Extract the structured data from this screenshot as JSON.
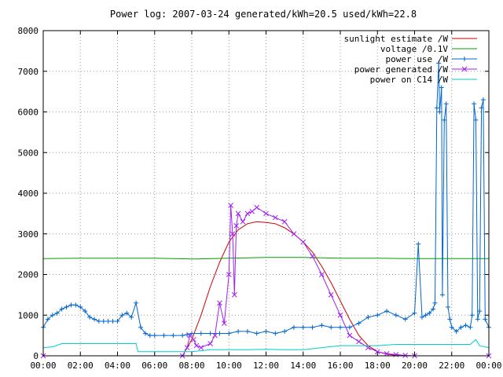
{
  "chart_data": {
    "type": "line",
    "title": "Power log: 2007-03-24 generated/kWh=20.5 used/kWh=22.8",
    "xlabel": "",
    "ylabel": "",
    "x_unit": "hours",
    "xlim": [
      0,
      24
    ],
    "ylim": [
      0,
      8000
    ],
    "grid": true,
    "legend_position": "top-right",
    "x_ticks": [
      "00:00",
      "02:00",
      "04:00",
      "06:00",
      "08:00",
      "10:00",
      "12:00",
      "14:00",
      "16:00",
      "18:00",
      "20:00",
      "22:00",
      "00:00"
    ],
    "y_ticks": [
      "0",
      "1000",
      "2000",
      "3000",
      "4000",
      "5000",
      "6000",
      "7000",
      "8000"
    ],
    "series": [
      {
        "name": "sunlight estimate /W",
        "color": "#cc0000",
        "style": "line",
        "points": [
          [
            0,
            0
          ],
          [
            7.5,
            0
          ],
          [
            8,
            400
          ],
          [
            8.5,
            1000
          ],
          [
            9,
            1700
          ],
          [
            9.5,
            2300
          ],
          [
            10,
            2800
          ],
          [
            10.5,
            3100
          ],
          [
            11,
            3250
          ],
          [
            11.5,
            3300
          ],
          [
            12,
            3280
          ],
          [
            12.5,
            3250
          ],
          [
            13,
            3150
          ],
          [
            13.5,
            3000
          ],
          [
            14,
            2800
          ],
          [
            14.5,
            2550
          ],
          [
            15,
            2200
          ],
          [
            15.5,
            1800
          ],
          [
            16,
            1350
          ],
          [
            16.5,
            900
          ],
          [
            17,
            500
          ],
          [
            17.5,
            250
          ],
          [
            18,
            100
          ],
          [
            18.5,
            40
          ],
          [
            19,
            10
          ],
          [
            19.5,
            0
          ],
          [
            24,
            0
          ]
        ]
      },
      {
        "name": "voltage /0.1V",
        "color": "#00a000",
        "style": "line",
        "points": [
          [
            0,
            2390
          ],
          [
            2,
            2400
          ],
          [
            4,
            2400
          ],
          [
            6,
            2400
          ],
          [
            8,
            2380
          ],
          [
            10,
            2400
          ],
          [
            12,
            2420
          ],
          [
            14,
            2420
          ],
          [
            16,
            2400
          ],
          [
            18,
            2400
          ],
          [
            20,
            2390
          ],
          [
            22,
            2390
          ],
          [
            24,
            2390
          ]
        ]
      },
      {
        "name": "power use /W",
        "color": "#0066cc",
        "style": "linepoints",
        "points": [
          [
            0,
            700
          ],
          [
            0.25,
            900
          ],
          [
            0.5,
            1000
          ],
          [
            0.75,
            1050
          ],
          [
            1,
            1150
          ],
          [
            1.25,
            1200
          ],
          [
            1.5,
            1250
          ],
          [
            1.75,
            1250
          ],
          [
            2,
            1200
          ],
          [
            2.25,
            1100
          ],
          [
            2.5,
            950
          ],
          [
            2.75,
            900
          ],
          [
            3,
            850
          ],
          [
            3.25,
            850
          ],
          [
            3.5,
            850
          ],
          [
            3.75,
            850
          ],
          [
            4,
            850
          ],
          [
            4.25,
            1000
          ],
          [
            4.5,
            1050
          ],
          [
            4.75,
            950
          ],
          [
            5,
            1300
          ],
          [
            5.25,
            700
          ],
          [
            5.5,
            550
          ],
          [
            5.75,
            500
          ],
          [
            6,
            500
          ],
          [
            6.5,
            500
          ],
          [
            7,
            500
          ],
          [
            7.5,
            500
          ],
          [
            7.75,
            520
          ],
          [
            8,
            550
          ],
          [
            8.5,
            550
          ],
          [
            9,
            550
          ],
          [
            9.5,
            550
          ],
          [
            10,
            550
          ],
          [
            10.5,
            600
          ],
          [
            11,
            600
          ],
          [
            11.5,
            550
          ],
          [
            12,
            600
          ],
          [
            12.5,
            550
          ],
          [
            13,
            600
          ],
          [
            13.5,
            700
          ],
          [
            14,
            700
          ],
          [
            14.5,
            700
          ],
          [
            15,
            750
          ],
          [
            15.5,
            700
          ],
          [
            16,
            700
          ],
          [
            16.5,
            700
          ],
          [
            17,
            800
          ],
          [
            17.5,
            950
          ],
          [
            18,
            1000
          ],
          [
            18.5,
            1100
          ],
          [
            19,
            1000
          ],
          [
            19.5,
            900
          ],
          [
            20,
            1050
          ],
          [
            20.2,
            2750
          ],
          [
            20.4,
            950
          ],
          [
            20.6,
            1000
          ],
          [
            20.8,
            1050
          ],
          [
            21,
            1150
          ],
          [
            21.1,
            1300
          ],
          [
            21.2,
            6100
          ],
          [
            21.3,
            7200
          ],
          [
            21.35,
            6000
          ],
          [
            21.45,
            6600
          ],
          [
            21.5,
            1500
          ],
          [
            21.6,
            5800
          ],
          [
            21.7,
            6200
          ],
          [
            21.8,
            1200
          ],
          [
            21.9,
            900
          ],
          [
            22,
            700
          ],
          [
            22.25,
            600
          ],
          [
            22.5,
            700
          ],
          [
            22.75,
            750
          ],
          [
            23,
            700
          ],
          [
            23.1,
            1000
          ],
          [
            23.2,
            6200
          ],
          [
            23.3,
            5800
          ],
          [
            23.4,
            900
          ],
          [
            23.5,
            1100
          ],
          [
            23.6,
            6100
          ],
          [
            23.7,
            6300
          ],
          [
            23.8,
            900
          ],
          [
            24,
            700
          ]
        ]
      },
      {
        "name": "power generated /W",
        "color": "#a020f0",
        "style": "linepoints",
        "points": [
          [
            0,
            0
          ],
          [
            7.5,
            0
          ],
          [
            7.75,
            200
          ],
          [
            7.9,
            500
          ],
          [
            8.1,
            400
          ],
          [
            8.25,
            250
          ],
          [
            8.5,
            200
          ],
          [
            9,
            300
          ],
          [
            9.25,
            500
          ],
          [
            9.5,
            1300
          ],
          [
            9.75,
            800
          ],
          [
            10,
            2000
          ],
          [
            10.1,
            3700
          ],
          [
            10.2,
            3000
          ],
          [
            10.3,
            1500
          ],
          [
            10.4,
            3200
          ],
          [
            10.5,
            3500
          ],
          [
            10.75,
            3300
          ],
          [
            11,
            3500
          ],
          [
            11.25,
            3550
          ],
          [
            11.5,
            3650
          ],
          [
            12,
            3500
          ],
          [
            12.5,
            3400
          ],
          [
            13,
            3300
          ],
          [
            13.5,
            3000
          ],
          [
            14,
            2800
          ],
          [
            14.5,
            2450
          ],
          [
            15,
            2000
          ],
          [
            15.5,
            1500
          ],
          [
            16,
            1000
          ],
          [
            16.5,
            500
          ],
          [
            17,
            350
          ],
          [
            17.5,
            200
          ],
          [
            18,
            100
          ],
          [
            18.5,
            50
          ],
          [
            19,
            30
          ],
          [
            19.5,
            10
          ],
          [
            20,
            0
          ],
          [
            24,
            0
          ]
        ]
      },
      {
        "name": "power on C14 /W",
        "color": "#00cccc",
        "style": "line",
        "points": [
          [
            0,
            200
          ],
          [
            0.5,
            220
          ],
          [
            1,
            300
          ],
          [
            2,
            300
          ],
          [
            3,
            300
          ],
          [
            4,
            300
          ],
          [
            5,
            300
          ],
          [
            5.1,
            100
          ],
          [
            6,
            100
          ],
          [
            7,
            100
          ],
          [
            8,
            100
          ],
          [
            9,
            150
          ],
          [
            10,
            150
          ],
          [
            11,
            150
          ],
          [
            12,
            160
          ],
          [
            13,
            150
          ],
          [
            14,
            150
          ],
          [
            15,
            200
          ],
          [
            16,
            250
          ],
          [
            17,
            250
          ],
          [
            18,
            250
          ],
          [
            19,
            280
          ],
          [
            20,
            280
          ],
          [
            21,
            280
          ],
          [
            22,
            280
          ],
          [
            23,
            280
          ],
          [
            23.3,
            400
          ],
          [
            23.5,
            250
          ],
          [
            24,
            200
          ]
        ]
      }
    ]
  }
}
